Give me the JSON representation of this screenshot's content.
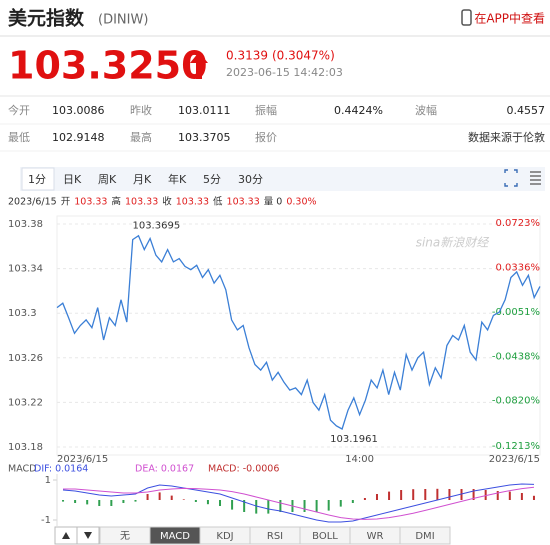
{
  "header": {
    "title": "美元指数",
    "code": "(DINIW)",
    "app_link": "在APP中查看"
  },
  "quote": {
    "price": "103.3250",
    "change": "0.3139",
    "change_pct": "(0.3047%)",
    "time": "2023-06-15 14:42:03"
  },
  "stats": [
    [
      "今开",
      "103.0086",
      "昨收",
      "103.0111",
      "振幅",
      "0.4424%",
      "波幅",
      "0.4557"
    ],
    [
      "最低",
      "102.9148",
      "最高",
      "103.3705",
      "报价"
    ]
  ],
  "source": "数据来源于伦敦",
  "period_tabs": [
    "1分",
    "日K",
    "周K",
    "月K",
    "年K",
    "5分",
    "30分"
  ],
  "active_period_index": 0,
  "info_line": [
    {
      "text": "2023/6/15",
      "color": "#333333"
    },
    {
      "text": "开",
      "color": "#333333"
    },
    {
      "text": "103.33",
      "color": "#e02020"
    },
    {
      "text": "高",
      "color": "#333333"
    },
    {
      "text": "103.33",
      "color": "#e02020"
    },
    {
      "text": "收",
      "color": "#333333"
    },
    {
      "text": "103.33",
      "color": "#e02020"
    },
    {
      "text": "低",
      "color": "#333333"
    },
    {
      "text": "103.33",
      "color": "#e02020"
    },
    {
      "text": "量 0",
      "color": "#333333"
    },
    {
      "text": "0.30%",
      "color": "#e02020"
    }
  ],
  "chart_data": [
    {
      "type": "line",
      "watermark": "sina新浪财经",
      "color": "#3b7fd6",
      "values": [
        103.305,
        103.309,
        103.296,
        103.282,
        103.289,
        103.294,
        103.287,
        103.305,
        103.276,
        103.296,
        103.289,
        103.312,
        103.292,
        103.366,
        103.3695,
        103.357,
        103.367,
        103.352,
        103.346,
        103.357,
        103.346,
        103.349,
        103.342,
        103.339,
        103.343,
        103.332,
        103.339,
        103.327,
        103.334,
        103.321,
        103.294,
        103.285,
        103.289,
        103.269,
        103.254,
        103.249,
        103.256,
        103.24,
        103.247,
        103.238,
        103.231,
        103.233,
        103.227,
        103.24,
        103.22,
        103.213,
        103.227,
        103.204,
        103.199,
        103.1961,
        103.213,
        103.224,
        103.209,
        103.222,
        103.24,
        103.233,
        103.249,
        103.227,
        103.247,
        103.231,
        103.263,
        103.249,
        103.26,
        103.265,
        103.236,
        103.251,
        103.242,
        103.271,
        103.28,
        103.276,
        103.289,
        103.265,
        103.258,
        103.292,
        103.285,
        103.298,
        103.301,
        103.312,
        103.332,
        103.337,
        103.325,
        103.334,
        103.314,
        103.324
      ],
      "annotations": [
        "103.3695",
        "103.1961"
      ],
      "xlim": [
        0,
        83
      ],
      "xticks": [
        {
          "value": 0,
          "label": "2023/6/15"
        },
        {
          "value": 52,
          "label": "14:00"
        },
        {
          "value": 83,
          "label": "2023/6/15"
        }
      ],
      "ylim": [
        103.18,
        103.38
      ],
      "yticks": [
        103.18,
        103.22,
        103.26,
        103.3,
        103.34,
        103.38
      ],
      "y2lim": [
        -0.1213,
        0.0723
      ],
      "y2ticks": [
        {
          "value": 0.0723,
          "label": "0.0723%"
        },
        {
          "value": 0.0336,
          "label": "0.0336%"
        },
        {
          "value": -0.0051,
          "label": "-0.0051%"
        },
        {
          "value": -0.0438,
          "label": "-0.0438%"
        },
        {
          "value": -0.082,
          "label": "-0.0820%"
        },
        {
          "value": -0.1213,
          "label": "-0.1213%"
        }
      ],
      "grid": true
    },
    {
      "type": "macd",
      "title": "MACD",
      "series": [
        {
          "name": "DIF: 0.0164",
          "color": "#3c4fe0",
          "values": [
            0.5,
            0.45,
            0.35,
            0.25,
            0.2,
            0.25,
            0.3,
            0.6,
            0.75,
            0.7,
            0.6,
            0.5,
            0.4,
            0.3,
            0.1,
            -0.1,
            -0.3,
            -0.45,
            -0.55,
            -0.7,
            -0.85,
            -1.0,
            -1.1,
            -1.1,
            -1.05,
            -0.9,
            -0.75,
            -0.6,
            -0.45,
            -0.3,
            -0.15,
            0.0,
            0.15,
            0.3,
            0.45,
            0.55,
            0.65,
            0.75,
            0.8,
            0.78
          ]
        },
        {
          "name": "DEA: 0.0167",
          "color": "#d050d0",
          "values": [
            0.55,
            0.55,
            0.5,
            0.45,
            0.4,
            0.35,
            0.35,
            0.4,
            0.5,
            0.55,
            0.58,
            0.57,
            0.54,
            0.5,
            0.42,
            0.3,
            0.15,
            0.0,
            -0.15,
            -0.3,
            -0.45,
            -0.6,
            -0.75,
            -0.88,
            -0.95,
            -0.97,
            -0.95,
            -0.88,
            -0.78,
            -0.66,
            -0.52,
            -0.37,
            -0.22,
            -0.07,
            0.08,
            0.22,
            0.35,
            0.47,
            0.57,
            0.64
          ]
        },
        {
          "name": "MACD: -0.0006",
          "type": "bar",
          "color": "#c03030",
          "negative_color": "#30a050",
          "values": [
            -0.08,
            -0.15,
            -0.22,
            -0.3,
            -0.3,
            -0.15,
            -0.08,
            0.3,
            0.38,
            0.22,
            0.03,
            -0.1,
            -0.21,
            -0.3,
            -0.48,
            -0.6,
            -0.68,
            -0.68,
            -0.6,
            -0.6,
            -0.6,
            -0.6,
            -0.53,
            -0.33,
            -0.15,
            0.1,
            0.3,
            0.42,
            0.5,
            0.54,
            0.55,
            0.56,
            0.55,
            0.55,
            0.55,
            0.5,
            0.45,
            0.42,
            0.35,
            0.21
          ]
        }
      ],
      "ylim": [
        -1.3,
        1.3
      ],
      "yticks": [
        1,
        -1
      ]
    }
  ],
  "indicator_tabs": [
    "无",
    "MACD",
    "KDJ",
    "RSI",
    "BOLL",
    "WR",
    "DMI"
  ],
  "active_indicator_index": 1
}
